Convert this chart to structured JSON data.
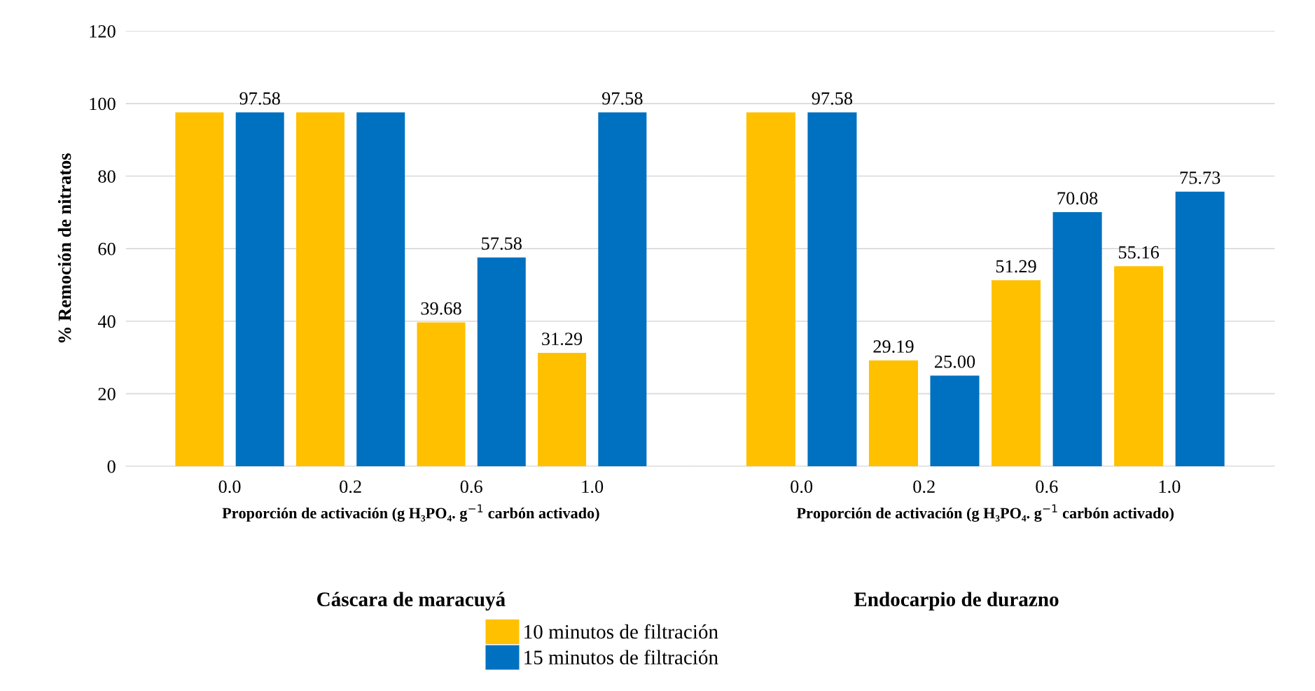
{
  "chart_data": [
    {
      "type": "bar",
      "title": "Cáscara de maracuyá",
      "xlabel": "Proporción de activación (g H₃PO₄. g$^{−1}$ carbón activado)",
      "ylabel": "% Remoción de nitratos",
      "categories": [
        "0.0",
        "0.2",
        "0.6",
        "1.0"
      ],
      "series": [
        {
          "name": "10 minutos de filtración",
          "color": "#ffc000",
          "values": [
            97.58,
            97.58,
            39.68,
            31.29
          ],
          "value_labels": [
            null,
            null,
            "39.68",
            "31.29"
          ]
        },
        {
          "name": "15 minutos de filtración",
          "color": "#0070c0",
          "values": [
            97.58,
            97.58,
            57.58,
            97.58
          ],
          "value_labels": [
            "97.58",
            null,
            "57.58",
            "97.58"
          ]
        }
      ],
      "ylim": [
        0,
        120
      ],
      "yticks": [
        0,
        20,
        40,
        60,
        80,
        100,
        120
      ],
      "grid": "y",
      "legend": "bottom"
    },
    {
      "type": "bar",
      "title": "Endocarpio de durazno",
      "xlabel": "Proporción de activación (g H₃PO₄. g$^{−1}$ carbón activado)",
      "categories": [
        "0.0",
        "0.2",
        "0.6",
        "1.0"
      ],
      "series": [
        {
          "color": "#ffc000",
          "values": [
            97.58,
            29.19,
            51.29,
            55.16
          ],
          "value_labels": [
            null,
            "29.19",
            "51.29",
            "55.16"
          ]
        },
        {
          "color": "#0070c0",
          "values": [
            97.58,
            25.0,
            70.08,
            75.73
          ],
          "value_labels": [
            "97.58",
            "25.00",
            "70.08",
            "75.73"
          ]
        }
      ],
      "ylim": [
        0,
        120
      ],
      "yticks": [
        0,
        20,
        40,
        60,
        80,
        100,
        120
      ],
      "grid": "y",
      "tick_labels": "x"
    }
  ]
}
